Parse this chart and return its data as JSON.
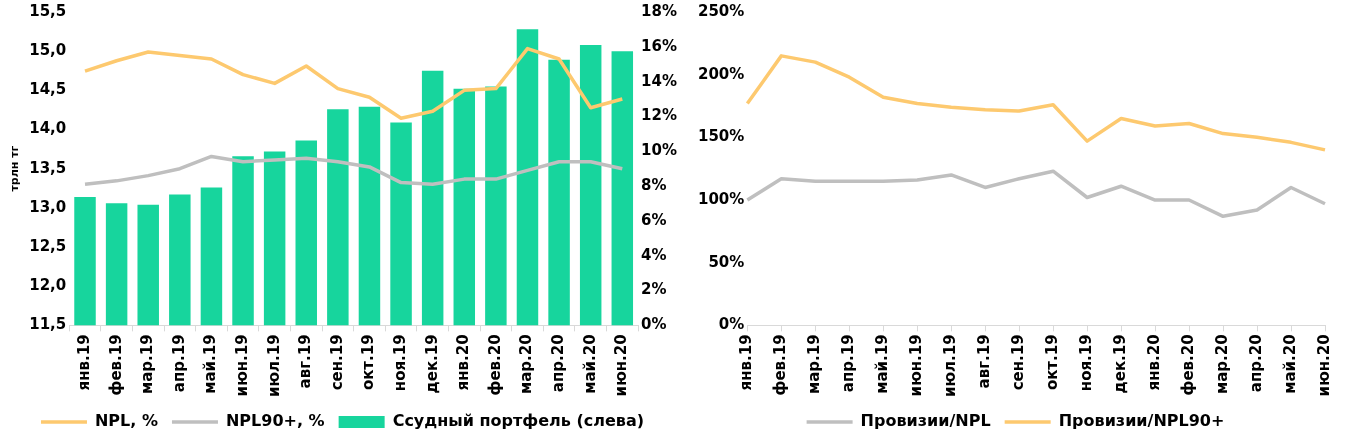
{
  "chart_data": [
    {
      "type": "bar",
      "ylabel": "трлн тг",
      "legend": "bottom",
      "grid": false,
      "categories": [
        "янв.19",
        "фев.19",
        "мар.19",
        "апр.19",
        "май.19",
        "июн.19",
        "июл.19",
        "авг.19",
        "сен.19",
        "окт.19",
        "ноя.19",
        "дек.19",
        "янв.20",
        "фев.20",
        "мар.20",
        "апр.20",
        "май.20",
        "июн.20"
      ],
      "ylim": [
        11.5,
        15.5
      ],
      "yticks": [
        {
          "value": 11.5,
          "label": "11,5"
        },
        {
          "value": 12,
          "label": "12,0"
        },
        {
          "value": 12.5,
          "label": "12,5"
        },
        {
          "value": 13,
          "label": "13,0"
        },
        {
          "value": 13.5,
          "label": "13,5"
        },
        {
          "value": 14,
          "label": "14,0"
        },
        {
          "value": 14.5,
          "label": "14,5"
        },
        {
          "value": 15,
          "label": "15,0"
        },
        {
          "value": 15.5,
          "label": "15,5"
        }
      ],
      "y2lim": [
        0,
        18
      ],
      "y2ticks": [
        {
          "value": 0,
          "label": "0%"
        },
        {
          "value": 2,
          "label": "2%"
        },
        {
          "value": 4,
          "label": "4%"
        },
        {
          "value": 6,
          "label": "6%"
        },
        {
          "value": 8,
          "label": "8%"
        },
        {
          "value": 10,
          "label": "10%"
        },
        {
          "value": 12,
          "label": "12%"
        },
        {
          "value": 14,
          "label": "14%"
        },
        {
          "value": 16,
          "label": "16%"
        },
        {
          "value": 18,
          "label": "18%"
        }
      ],
      "series": [
        {
          "name": "Ссудный портфель (слева)",
          "type": "bar",
          "color": "#17d59d",
          "values": [
            13.14,
            13.06,
            13.04,
            13.17,
            13.26,
            13.66,
            13.72,
            13.86,
            14.26,
            14.29,
            14.09,
            14.75,
            14.52,
            14.55,
            15.28,
            14.89,
            15.08,
            15.0
          ]
        },
        {
          "name": "NPL, %",
          "type": "line",
          "axis": "y2",
          "color": "#fdc96f",
          "values": [
            14.6,
            15.2,
            15.7,
            15.5,
            15.3,
            14.4,
            13.9,
            14.9,
            13.6,
            13.1,
            11.9,
            12.3,
            13.5,
            13.6,
            15.9,
            15.3,
            12.5,
            13.0
          ]
        },
        {
          "name": "NPL90+, %",
          "type": "line",
          "axis": "y2",
          "color": "#bfbfbf",
          "values": [
            8.1,
            8.3,
            8.6,
            9.0,
            9.7,
            9.4,
            9.5,
            9.6,
            9.4,
            9.1,
            8.2,
            8.1,
            8.4,
            8.4,
            8.9,
            9.4,
            9.4,
            9.0
          ]
        }
      ]
    },
    {
      "type": "line",
      "legend": "bottom",
      "grid": false,
      "categories": [
        "янв.19",
        "фев.19",
        "мар.19",
        "апр.19",
        "май.19",
        "июн.19",
        "июл.19",
        "авг.19",
        "сен.19",
        "окт.19",
        "ноя.19",
        "дек.19",
        "янв.20",
        "фев.20",
        "мар.20",
        "апр.20",
        "май.20",
        "июн.20"
      ],
      "ylim": [
        0,
        250
      ],
      "yticks": [
        {
          "value": 0,
          "label": "0%"
        },
        {
          "value": 50,
          "label": "50%"
        },
        {
          "value": 100,
          "label": "100%"
        },
        {
          "value": 150,
          "label": "150%"
        },
        {
          "value": 200,
          "label": "200%"
        },
        {
          "value": 250,
          "label": "250%"
        }
      ],
      "series": [
        {
          "name": "Провизии/NPL",
          "color": "#bfbfbf",
          "values": [
            100,
            117,
            115,
            115,
            115,
            116,
            120,
            110,
            117,
            123,
            102,
            111,
            100,
            100,
            87,
            92,
            110,
            97
          ]
        },
        {
          "name": "Провизии/NPL90+",
          "color": "#fdc96f",
          "values": [
            177,
            215,
            210,
            198,
            182,
            177,
            174,
            172,
            171,
            176,
            147,
            165,
            159,
            161,
            153,
            150,
            146,
            140
          ]
        }
      ]
    }
  ]
}
